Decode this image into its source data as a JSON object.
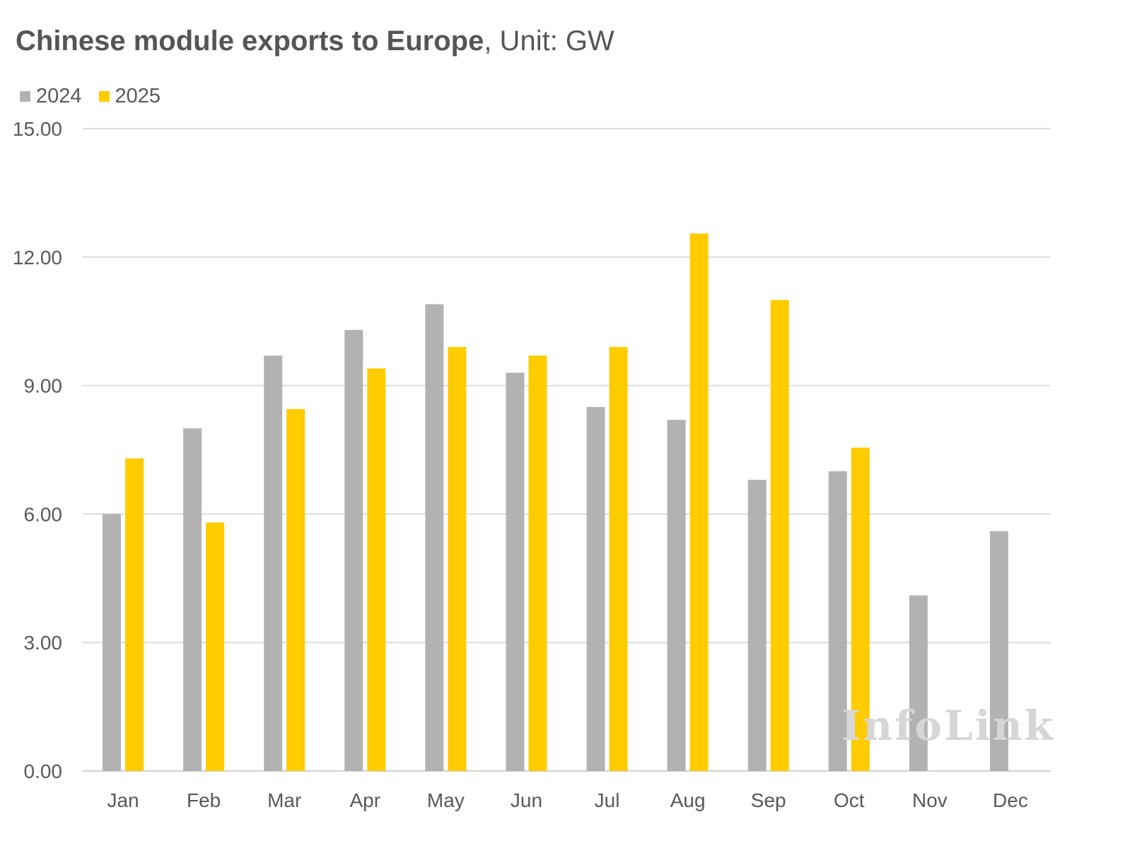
{
  "chart_data": {
    "type": "bar",
    "title": "Chinese module exports to Europe",
    "unit_label": ", Unit: GW",
    "categories": [
      "Jan",
      "Feb",
      "Mar",
      "Apr",
      "May",
      "Jun",
      "Jul",
      "Aug",
      "Sep",
      "Oct",
      "Nov",
      "Dec"
    ],
    "series": [
      {
        "name": "2024",
        "color": "#b2b2b2",
        "values": [
          6.0,
          8.0,
          9.7,
          10.3,
          10.9,
          9.3,
          8.5,
          8.2,
          6.8,
          7.0,
          4.1,
          5.6
        ]
      },
      {
        "name": "2025",
        "color": "#ffcc00",
        "values": [
          7.3,
          5.8,
          8.45,
          9.4,
          9.9,
          9.7,
          9.9,
          12.55,
          11.0,
          7.55,
          null,
          null
        ]
      }
    ],
    "yticks": [
      "0.00",
      "3.00",
      "6.00",
      "9.00",
      "12.00",
      "15.00"
    ],
    "ylim": [
      0,
      15
    ],
    "legend_position": "top-left",
    "grid": true,
    "watermark": "InfoLink"
  }
}
